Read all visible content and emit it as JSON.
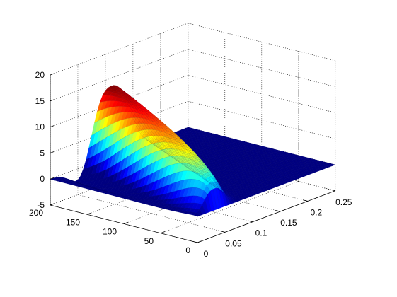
{
  "chart_data": {
    "type": "surface",
    "colormap": "jet",
    "grid": true,
    "axes": {
      "x": {
        "lim": [
          0,
          0.25
        ],
        "ticks": [
          0,
          0.05,
          0.1,
          0.15,
          0.2,
          0.25
        ],
        "tick_labels": [
          "0",
          "0.05",
          "0.1",
          "0.15",
          "0.2",
          "0.25"
        ]
      },
      "y": {
        "lim": [
          0,
          200
        ],
        "ticks": [
          0,
          50,
          100,
          150,
          200
        ],
        "tick_labels": [
          "0",
          "50",
          "100",
          "150",
          "200"
        ]
      },
      "z": {
        "lim": [
          -5,
          20
        ],
        "ticks": [
          -5,
          0,
          5,
          10,
          15,
          20
        ],
        "tick_labels": [
          "-5",
          "0",
          "5",
          "10",
          "15",
          "20"
        ]
      }
    },
    "surface": {
      "x_range": [
        0,
        0.25
      ],
      "y_range": [
        0,
        200
      ],
      "x_samples": 51,
      "y_samples": 41,
      "description_of_shape": "travelling hump along y; amplitude rises to ~13.5 near y=200, flat zero plane elsewhere, small negative undershoot",
      "amplitude_peak": 13.5,
      "baseline": 0
    }
  }
}
